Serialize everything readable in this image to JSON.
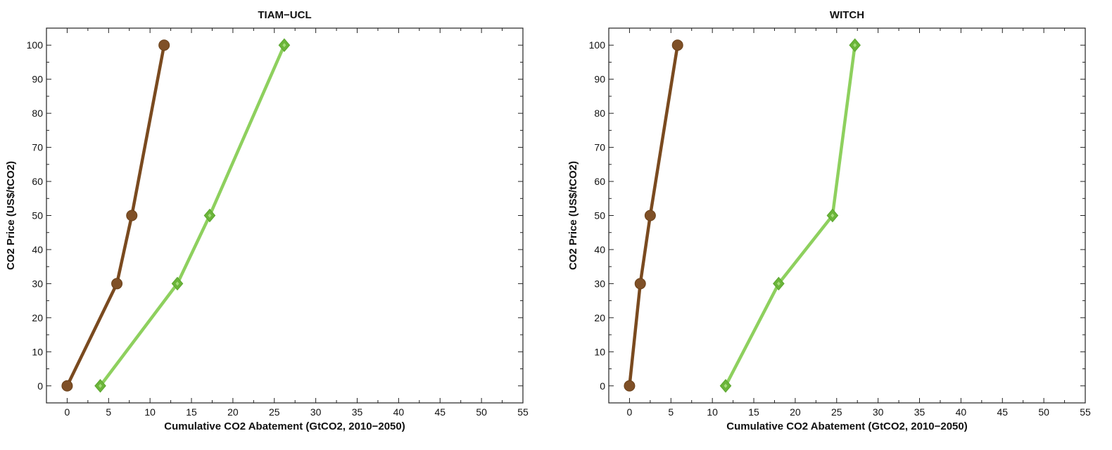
{
  "chart_data": [
    {
      "type": "line",
      "title": "TIAM−UCL",
      "xlabel": "Cumulative CO2 Abatement (GtCO2, 2010−2050)",
      "ylabel": "CO2 Price (US$/tCO2)",
      "xlim": [
        -2.5,
        55
      ],
      "ylim": [
        -5,
        105
      ],
      "xticks": [
        0,
        5,
        10,
        15,
        20,
        25,
        30,
        35,
        40,
        45,
        50,
        55
      ],
      "yticks": [
        0,
        10,
        20,
        30,
        40,
        50,
        60,
        70,
        80,
        90,
        100
      ],
      "grid": false,
      "series": [
        {
          "marker": "circle",
          "color": "#7a4a1f",
          "marker_color": "#7f5027",
          "points": [
            [
              0,
              0
            ],
            [
              6,
              30
            ],
            [
              7.8,
              50
            ],
            [
              11.7,
              100
            ]
          ]
        },
        {
          "marker": "diamond",
          "color": "#8ed05e",
          "marker_color": "#6bb53a",
          "points": [
            [
              4,
              0
            ],
            [
              13.3,
              30
            ],
            [
              17.2,
              50
            ],
            [
              26.2,
              100
            ]
          ]
        }
      ]
    },
    {
      "type": "line",
      "title": "WITCH",
      "xlabel": "Cumulative CO2 Abatement (GtCO2, 2010−2050)",
      "ylabel": "CO2 Price (US$/tCO2)",
      "xlim": [
        -2.5,
        55
      ],
      "ylim": [
        -5,
        105
      ],
      "xticks": [
        0,
        5,
        10,
        15,
        20,
        25,
        30,
        35,
        40,
        45,
        50,
        55
      ],
      "yticks": [
        0,
        10,
        20,
        30,
        40,
        50,
        60,
        70,
        80,
        90,
        100
      ],
      "grid": false,
      "series": [
        {
          "marker": "circle",
          "color": "#7a4a1f",
          "marker_color": "#7f5027",
          "points": [
            [
              0,
              0
            ],
            [
              1.3,
              30
            ],
            [
              2.5,
              50
            ],
            [
              5.8,
              100
            ]
          ]
        },
        {
          "marker": "diamond",
          "color": "#8ed05e",
          "marker_color": "#6bb53a",
          "points": [
            [
              11.6,
              0
            ],
            [
              18,
              30
            ],
            [
              24.5,
              50
            ],
            [
              27.2,
              100
            ]
          ]
        }
      ]
    }
  ]
}
